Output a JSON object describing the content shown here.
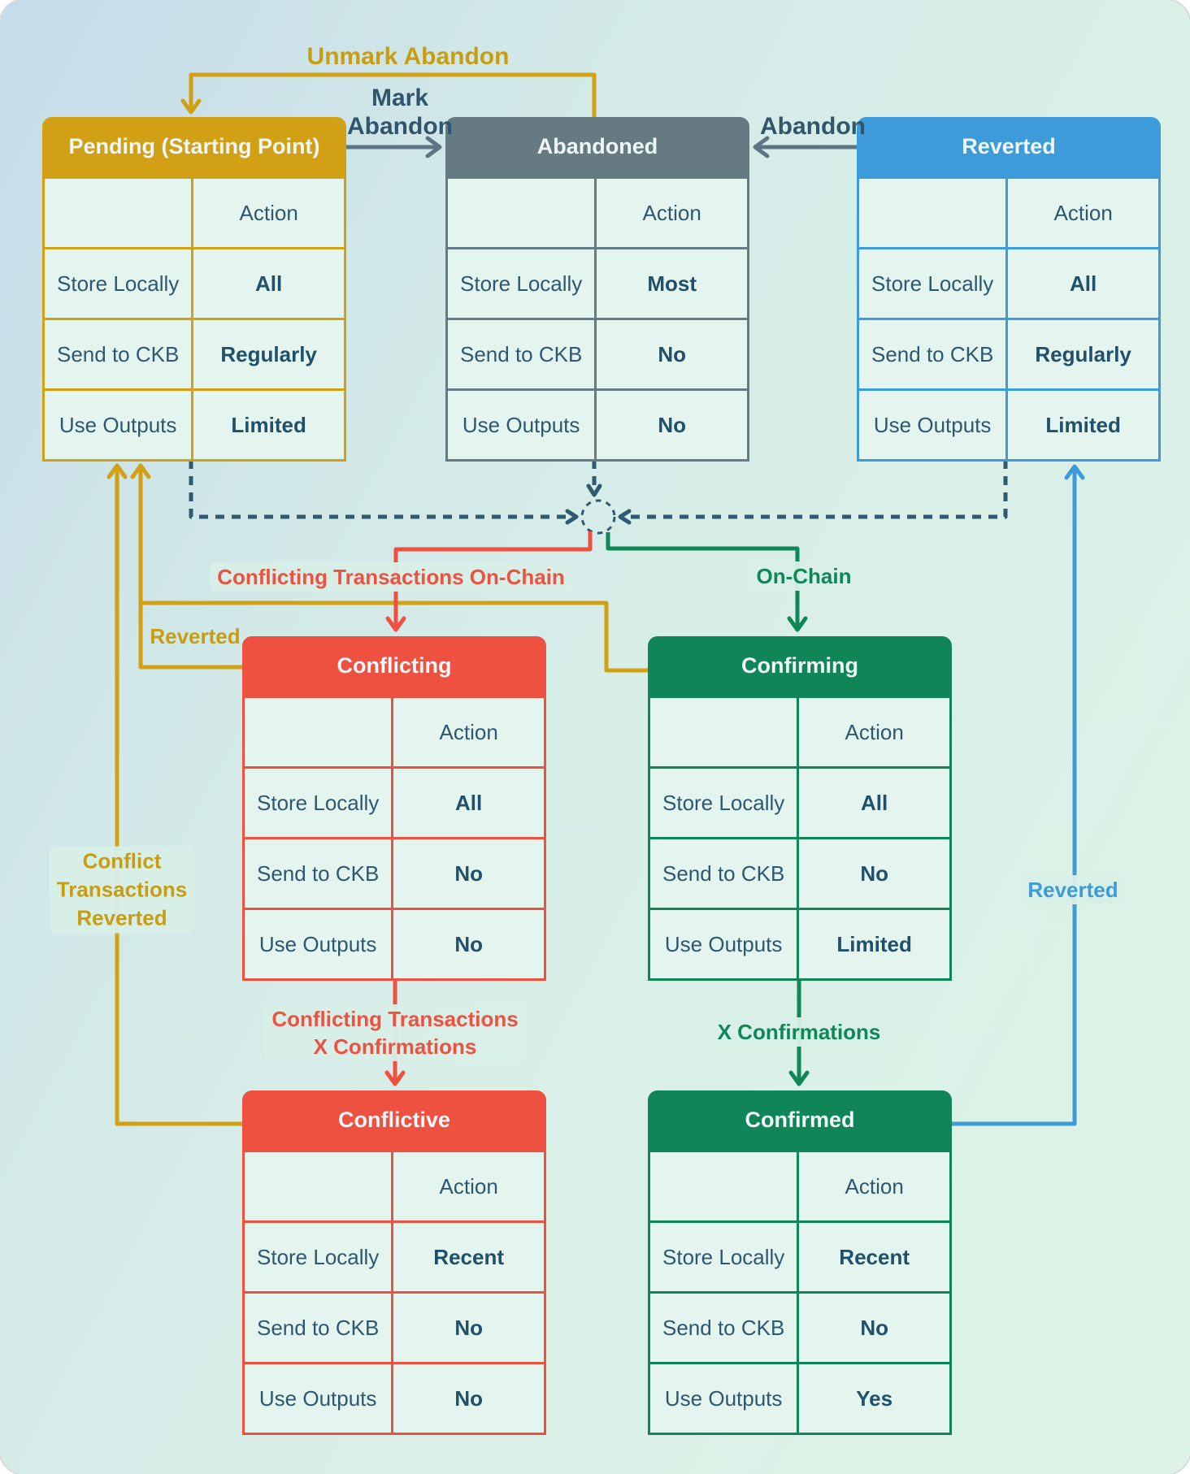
{
  "diagram_title": "Transaction state diagram",
  "colors": {
    "gold": "#d1a014",
    "slate": "#667a82",
    "blue": "#3d9bd9",
    "red": "#ee5140",
    "green": "#108557",
    "ink": "#2e5870",
    "dashed_line": "#2f5a70",
    "cell_background": "#e4f4ee"
  },
  "tables": [
    {
      "id": "pending",
      "theme": "gold",
      "title": "Pending (Starting Point)",
      "action_header": "Action",
      "rows": [
        {
          "label": "Store Locally",
          "value": "All"
        },
        {
          "label": "Send to CKB",
          "value": "Regularly"
        },
        {
          "label": "Use Outputs",
          "value": "Limited"
        }
      ]
    },
    {
      "id": "abandoned",
      "theme": "slate",
      "title": "Abandoned",
      "action_header": "Action",
      "rows": [
        {
          "label": "Store Locally",
          "value": "Most"
        },
        {
          "label": "Send to CKB",
          "value": "No"
        },
        {
          "label": "Use Outputs",
          "value": "No"
        }
      ]
    },
    {
      "id": "reverted",
      "theme": "blue",
      "title": "Reverted",
      "action_header": "Action",
      "rows": [
        {
          "label": "Store Locally",
          "value": "All"
        },
        {
          "label": "Send to CKB",
          "value": "Regularly"
        },
        {
          "label": "Use Outputs",
          "value": "Limited"
        }
      ]
    },
    {
      "id": "conflicting",
      "theme": "red",
      "title": "Conflicting",
      "action_header": "Action",
      "rows": [
        {
          "label": "Store Locally",
          "value": "All"
        },
        {
          "label": "Send to CKB",
          "value": "No"
        },
        {
          "label": "Use Outputs",
          "value": "No"
        }
      ]
    },
    {
      "id": "confirming",
      "theme": "green",
      "title": "Confirming",
      "action_header": "Action",
      "rows": [
        {
          "label": "Store Locally",
          "value": "All"
        },
        {
          "label": "Send to CKB",
          "value": "No"
        },
        {
          "label": "Use Outputs",
          "value": "Limited"
        }
      ]
    },
    {
      "id": "conflictive",
      "theme": "red",
      "title": "Conflictive",
      "action_header": "Action",
      "rows": [
        {
          "label": "Store Locally",
          "value": "Recent"
        },
        {
          "label": "Send to CKB",
          "value": "No"
        },
        {
          "label": "Use Outputs",
          "value": "No"
        }
      ]
    },
    {
      "id": "confirmed",
      "theme": "green",
      "title": "Confirmed",
      "action_header": "Action",
      "rows": [
        {
          "label": "Store Locally",
          "value": "Recent"
        },
        {
          "label": "Send to CKB",
          "value": "No"
        },
        {
          "label": "Use Outputs",
          "value": "Yes"
        }
      ]
    }
  ],
  "edge_labels": {
    "unmark_abandon": "Unmark Abandon",
    "mark_abandon": "Mark\nAbandon",
    "abandon": "Abandon",
    "conflicting_on_chain": "Conflicting Transactions On-Chain",
    "on_chain": "On-Chain",
    "reverted_from_conflicting": "Reverted",
    "conflict_tx_reverted": "Conflict\nTransactions\nReverted",
    "conflicting_x_confirmations": "Conflicting Transactions\nX Confirmations",
    "x_confirmations": "X Confirmations",
    "reverted_from_confirmed": "Reverted"
  }
}
